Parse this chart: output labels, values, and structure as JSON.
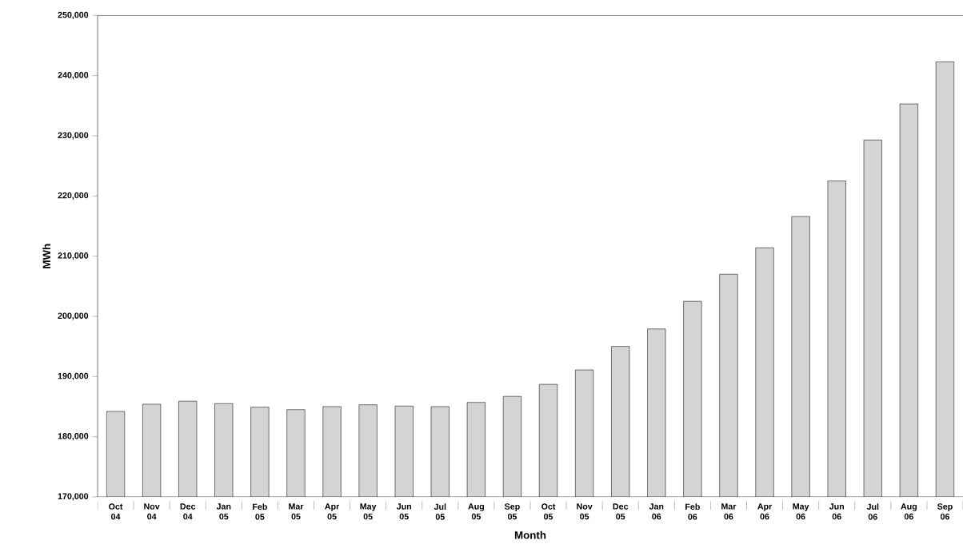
{
  "chart_data": {
    "type": "bar",
    "xlabel": "Month",
    "ylabel": "MWh",
    "categories": [
      "Oct 04",
      "Nov 04",
      "Dec 04",
      "Jan 05",
      "Feb 05",
      "Mar 05",
      "Apr 05",
      "May 05",
      "Jun 05",
      "Jul 05",
      "Aug 05",
      "Sep 05",
      "Oct 05",
      "Nov 05",
      "Dec 05",
      "Jan 06",
      "Feb 06",
      "Mar 06",
      "Apr 06",
      "May 06",
      "Jun 06",
      "Jul 06",
      "Aug 06",
      "Sep 06"
    ],
    "values": [
      184200,
      185400,
      185900,
      185500,
      184900,
      184500,
      185000,
      185300,
      185100,
      185000,
      185700,
      186700,
      188700,
      191100,
      195000,
      197900,
      202500,
      207000,
      211400,
      216600,
      222500,
      229300,
      235300,
      242300
    ],
    "color": "#d4d4d4",
    "ylim": [
      170000,
      250000
    ],
    "yticks": [
      {
        "value": 170000,
        "label": "170,000"
      },
      {
        "value": 180000,
        "label": "180,000"
      },
      {
        "value": 190000,
        "label": "190,000"
      },
      {
        "value": 200000,
        "label": "200,000"
      },
      {
        "value": 210000,
        "label": "210,000"
      },
      {
        "value": 220000,
        "label": "220,000"
      },
      {
        "value": 230000,
        "label": "230,000"
      },
      {
        "value": 240000,
        "label": "240,000"
      },
      {
        "value": 250000,
        "label": "250,000"
      }
    ],
    "grid": false
  }
}
